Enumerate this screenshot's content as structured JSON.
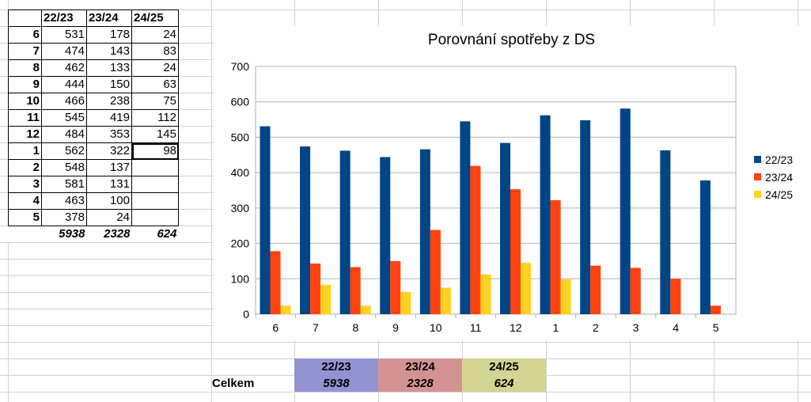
{
  "table": {
    "headers": [
      "22/23",
      "23/24",
      "24/25"
    ],
    "rows": [
      [
        "6",
        "531",
        "178",
        "24"
      ],
      [
        "7",
        "474",
        "143",
        "83"
      ],
      [
        "8",
        "462",
        "133",
        "24"
      ],
      [
        "9",
        "444",
        "150",
        "63"
      ],
      [
        "10",
        "466",
        "238",
        "75"
      ],
      [
        "11",
        "545",
        "419",
        "112"
      ],
      [
        "12",
        "484",
        "353",
        "145"
      ],
      [
        "1",
        "562",
        "322",
        "98"
      ],
      [
        "2",
        "548",
        "137",
        ""
      ],
      [
        "3",
        "581",
        "131",
        ""
      ],
      [
        "4",
        "463",
        "100",
        ""
      ],
      [
        "5",
        "378",
        "24",
        ""
      ]
    ],
    "totals": [
      "5938",
      "2328",
      "624"
    ]
  },
  "summary": {
    "label": "Celkem",
    "items": [
      {
        "name": "22/23",
        "value": "5938",
        "color": "#9393d4"
      },
      {
        "name": "23/24",
        "value": "2328",
        "color": "#d49393"
      },
      {
        "name": "24/25",
        "value": "624",
        "color": "#d4d493"
      }
    ]
  },
  "chart_data": {
    "type": "bar",
    "title": "Porovnání spotřeby z DS",
    "categories": [
      "6",
      "7",
      "8",
      "9",
      "10",
      "11",
      "12",
      "1",
      "2",
      "3",
      "4",
      "5"
    ],
    "series": [
      {
        "name": "22/23",
        "color": "#004586",
        "values": [
          531,
          474,
          462,
          444,
          466,
          545,
          484,
          562,
          548,
          581,
          463,
          378
        ]
      },
      {
        "name": "23/24",
        "color": "#ff420e",
        "values": [
          178,
          143,
          133,
          150,
          238,
          419,
          353,
          322,
          137,
          131,
          100,
          24
        ]
      },
      {
        "name": "24/25",
        "color": "#ffd320",
        "values": [
          24,
          83,
          24,
          63,
          75,
          112,
          145,
          98,
          null,
          null,
          null,
          null
        ]
      }
    ],
    "ylim": [
      0,
      700
    ],
    "yticks": [
      0,
      100,
      200,
      300,
      400,
      500,
      600,
      700
    ],
    "grid": true,
    "legend": "right"
  }
}
